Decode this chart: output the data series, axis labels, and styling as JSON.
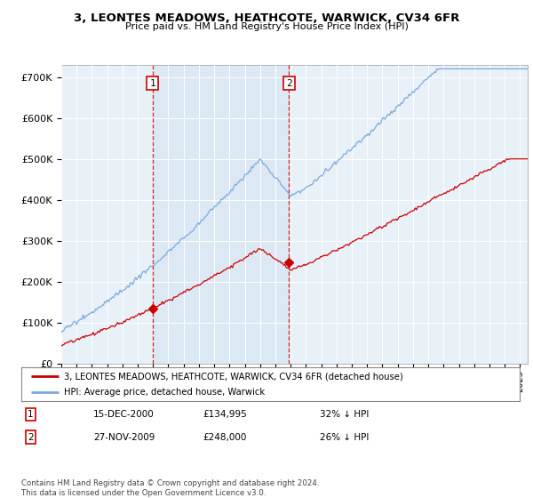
{
  "title": "3, LEONTES MEADOWS, HEATHCOTE, WARWICK, CV34 6FR",
  "subtitle": "Price paid vs. HM Land Registry's House Price Index (HPI)",
  "ylabel_ticks": [
    "£0",
    "£100K",
    "£200K",
    "£300K",
    "£400K",
    "£500K",
    "£600K",
    "£700K"
  ],
  "ytick_values": [
    0,
    100000,
    200000,
    300000,
    400000,
    500000,
    600000,
    700000
  ],
  "ylim": [
    0,
    730000
  ],
  "xlim_start": 1995.0,
  "xlim_end": 2025.5,
  "purchase1_x": 2000.96,
  "purchase1_y": 134995,
  "purchase1_label": "1",
  "purchase2_x": 2009.9,
  "purchase2_y": 248000,
  "purchase2_label": "2",
  "legend_line1": "3, LEONTES MEADOWS, HEATHCOTE, WARWICK, CV34 6FR (detached house)",
  "legend_line2": "HPI: Average price, detached house, Warwick",
  "info1_num": "1",
  "info1_date": "15-DEC-2000",
  "info1_price": "£134,995",
  "info1_hpi": "32% ↓ HPI",
  "info2_num": "2",
  "info2_date": "27-NOV-2009",
  "info2_price": "£248,000",
  "info2_hpi": "26% ↓ HPI",
  "footer": "Contains HM Land Registry data © Crown copyright and database right 2024.\nThis data is licensed under the Open Government Licence v3.0.",
  "line_red_color": "#cc0000",
  "line_blue_color": "#7aaadd",
  "box_color": "#cc0000",
  "shade_color": "#dce8f5"
}
